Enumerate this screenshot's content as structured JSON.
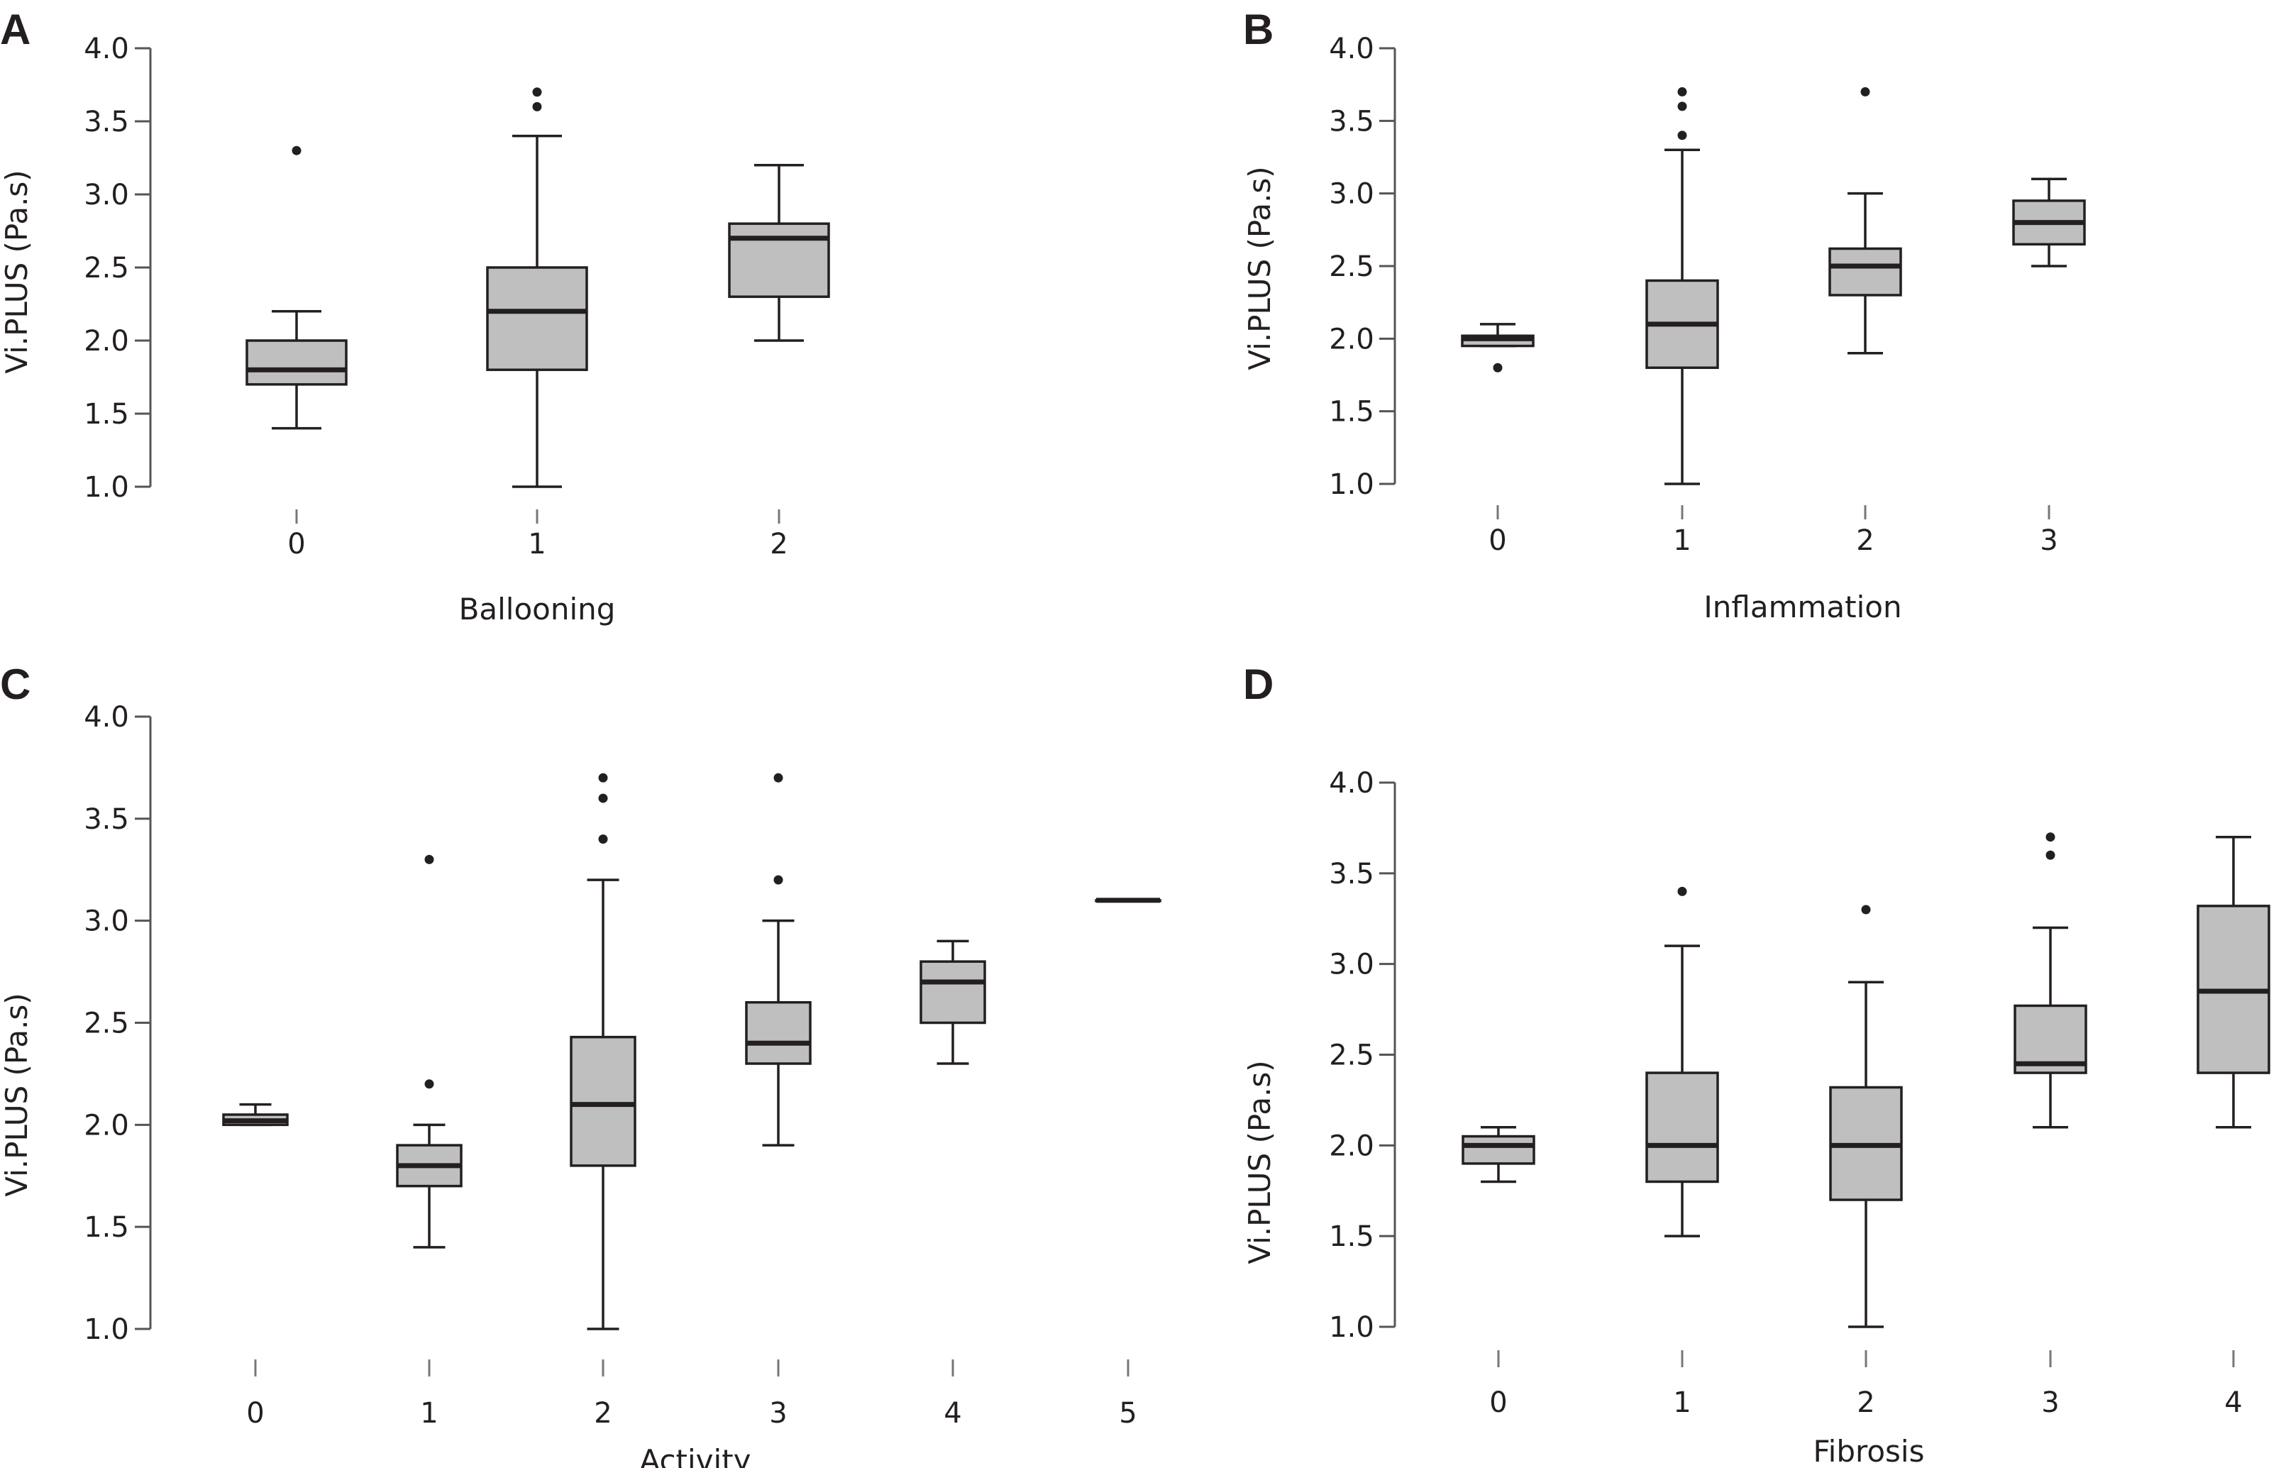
{
  "chart_data": [
    {
      "type": "box",
      "panel_label": "A",
      "xlabel": "Ballooning",
      "ylabel": "Vi.PLUS (Pa.s)",
      "ylim": [
        1.0,
        4.0
      ],
      "yticks": [
        "1.0",
        "1.5",
        "2.0",
        "2.5",
        "3.0",
        "3.5",
        "4.0"
      ],
      "categories": [
        "0",
        "1",
        "2"
      ],
      "boxes": [
        {
          "category": "0",
          "whisker_low": 1.4,
          "q1": 1.7,
          "median": 1.8,
          "q3": 2.0,
          "whisker_high": 2.2,
          "outliers": [
            3.3
          ]
        },
        {
          "category": "1",
          "whisker_low": 1.0,
          "q1": 1.8,
          "median": 2.2,
          "q3": 2.5,
          "whisker_high": 3.4,
          "outliers": [
            3.6,
            3.7
          ]
        },
        {
          "category": "2",
          "whisker_low": 2.0,
          "q1": 2.3,
          "median": 2.7,
          "q3": 2.8,
          "whisker_high": 3.2,
          "outliers": []
        }
      ]
    },
    {
      "type": "box",
      "panel_label": "B",
      "xlabel": "Inflammation",
      "ylabel": "Vi.PLUS (Pa.s)",
      "ylim": [
        1.0,
        4.0
      ],
      "yticks": [
        "1.0",
        "1.5",
        "2.0",
        "2.5",
        "3.0",
        "3.5",
        "4.0"
      ],
      "categories": [
        "0",
        "1",
        "2",
        "3"
      ],
      "boxes": [
        {
          "category": "0",
          "whisker_low": 1.95,
          "q1": 1.95,
          "median": 2.0,
          "q3": 2.02,
          "whisker_high": 2.1,
          "outliers": [
            1.8
          ]
        },
        {
          "category": "1",
          "whisker_low": 1.0,
          "q1": 1.8,
          "median": 2.1,
          "q3": 2.4,
          "whisker_high": 3.3,
          "outliers": [
            3.4,
            3.6,
            3.7
          ]
        },
        {
          "category": "2",
          "whisker_low": 1.9,
          "q1": 2.3,
          "median": 2.5,
          "q3": 2.62,
          "whisker_high": 3.0,
          "outliers": [
            3.7
          ]
        },
        {
          "category": "3",
          "whisker_low": 2.5,
          "q1": 2.65,
          "median": 2.8,
          "q3": 2.95,
          "whisker_high": 3.1,
          "outliers": []
        }
      ]
    },
    {
      "type": "box",
      "panel_label": "C",
      "xlabel": "Activity",
      "ylabel": "Vi.PLUS (Pa.s)",
      "ylim": [
        1.0,
        4.0
      ],
      "yticks": [
        "1.0",
        "1.5",
        "2.0",
        "2.5",
        "3.0",
        "3.5",
        "4.0"
      ],
      "categories": [
        "0",
        "1",
        "2",
        "3",
        "4",
        "5"
      ],
      "boxes": [
        {
          "category": "0",
          "whisker_low": 2.0,
          "q1": 2.0,
          "median": 2.02,
          "q3": 2.05,
          "whisker_high": 2.1,
          "outliers": []
        },
        {
          "category": "1",
          "whisker_low": 1.4,
          "q1": 1.7,
          "median": 1.8,
          "q3": 1.9,
          "whisker_high": 2.0,
          "outliers": [
            2.2,
            3.3
          ]
        },
        {
          "category": "2",
          "whisker_low": 1.0,
          "q1": 1.8,
          "median": 2.1,
          "q3": 2.43,
          "whisker_high": 3.2,
          "outliers": [
            3.4,
            3.6,
            3.7
          ]
        },
        {
          "category": "3",
          "whisker_low": 1.9,
          "q1": 2.3,
          "median": 2.4,
          "q3": 2.6,
          "whisker_high": 3.0,
          "outliers": [
            3.2,
            3.7
          ]
        },
        {
          "category": "4",
          "whisker_low": 2.3,
          "q1": 2.5,
          "median": 2.7,
          "q3": 2.8,
          "whisker_high": 2.9,
          "outliers": []
        },
        {
          "category": "5",
          "whisker_low": 3.1,
          "q1": 3.1,
          "median": 3.1,
          "q3": 3.1,
          "whisker_high": 3.1,
          "outliers": []
        }
      ]
    },
    {
      "type": "box",
      "panel_label": "D",
      "xlabel": "Fibrosis",
      "ylabel": "Vi.PLUS (Pa.s)",
      "ylim": [
        1.0,
        4.0
      ],
      "yticks": [
        "1.0",
        "1.5",
        "2.0",
        "2.5",
        "3.0",
        "3.5",
        "4.0"
      ],
      "categories": [
        "0",
        "1",
        "2",
        "3",
        "4"
      ],
      "boxes": [
        {
          "category": "0",
          "whisker_low": 1.8,
          "q1": 1.9,
          "median": 2.0,
          "q3": 2.05,
          "whisker_high": 2.1,
          "outliers": []
        },
        {
          "category": "1",
          "whisker_low": 1.5,
          "q1": 1.8,
          "median": 2.0,
          "q3": 2.4,
          "whisker_high": 3.1,
          "outliers": [
            3.4
          ]
        },
        {
          "category": "2",
          "whisker_low": 1.0,
          "q1": 1.7,
          "median": 2.0,
          "q3": 2.32,
          "whisker_high": 2.9,
          "outliers": [
            3.3
          ]
        },
        {
          "category": "3",
          "whisker_low": 2.1,
          "q1": 2.4,
          "median": 2.45,
          "q3": 2.77,
          "whisker_high": 3.2,
          "outliers": [
            3.6,
            3.7
          ]
        },
        {
          "category": "4",
          "whisker_low": 2.1,
          "q1": 2.4,
          "median": 2.85,
          "q3": 3.32,
          "whisker_high": 3.7,
          "outliers": []
        }
      ]
    }
  ]
}
